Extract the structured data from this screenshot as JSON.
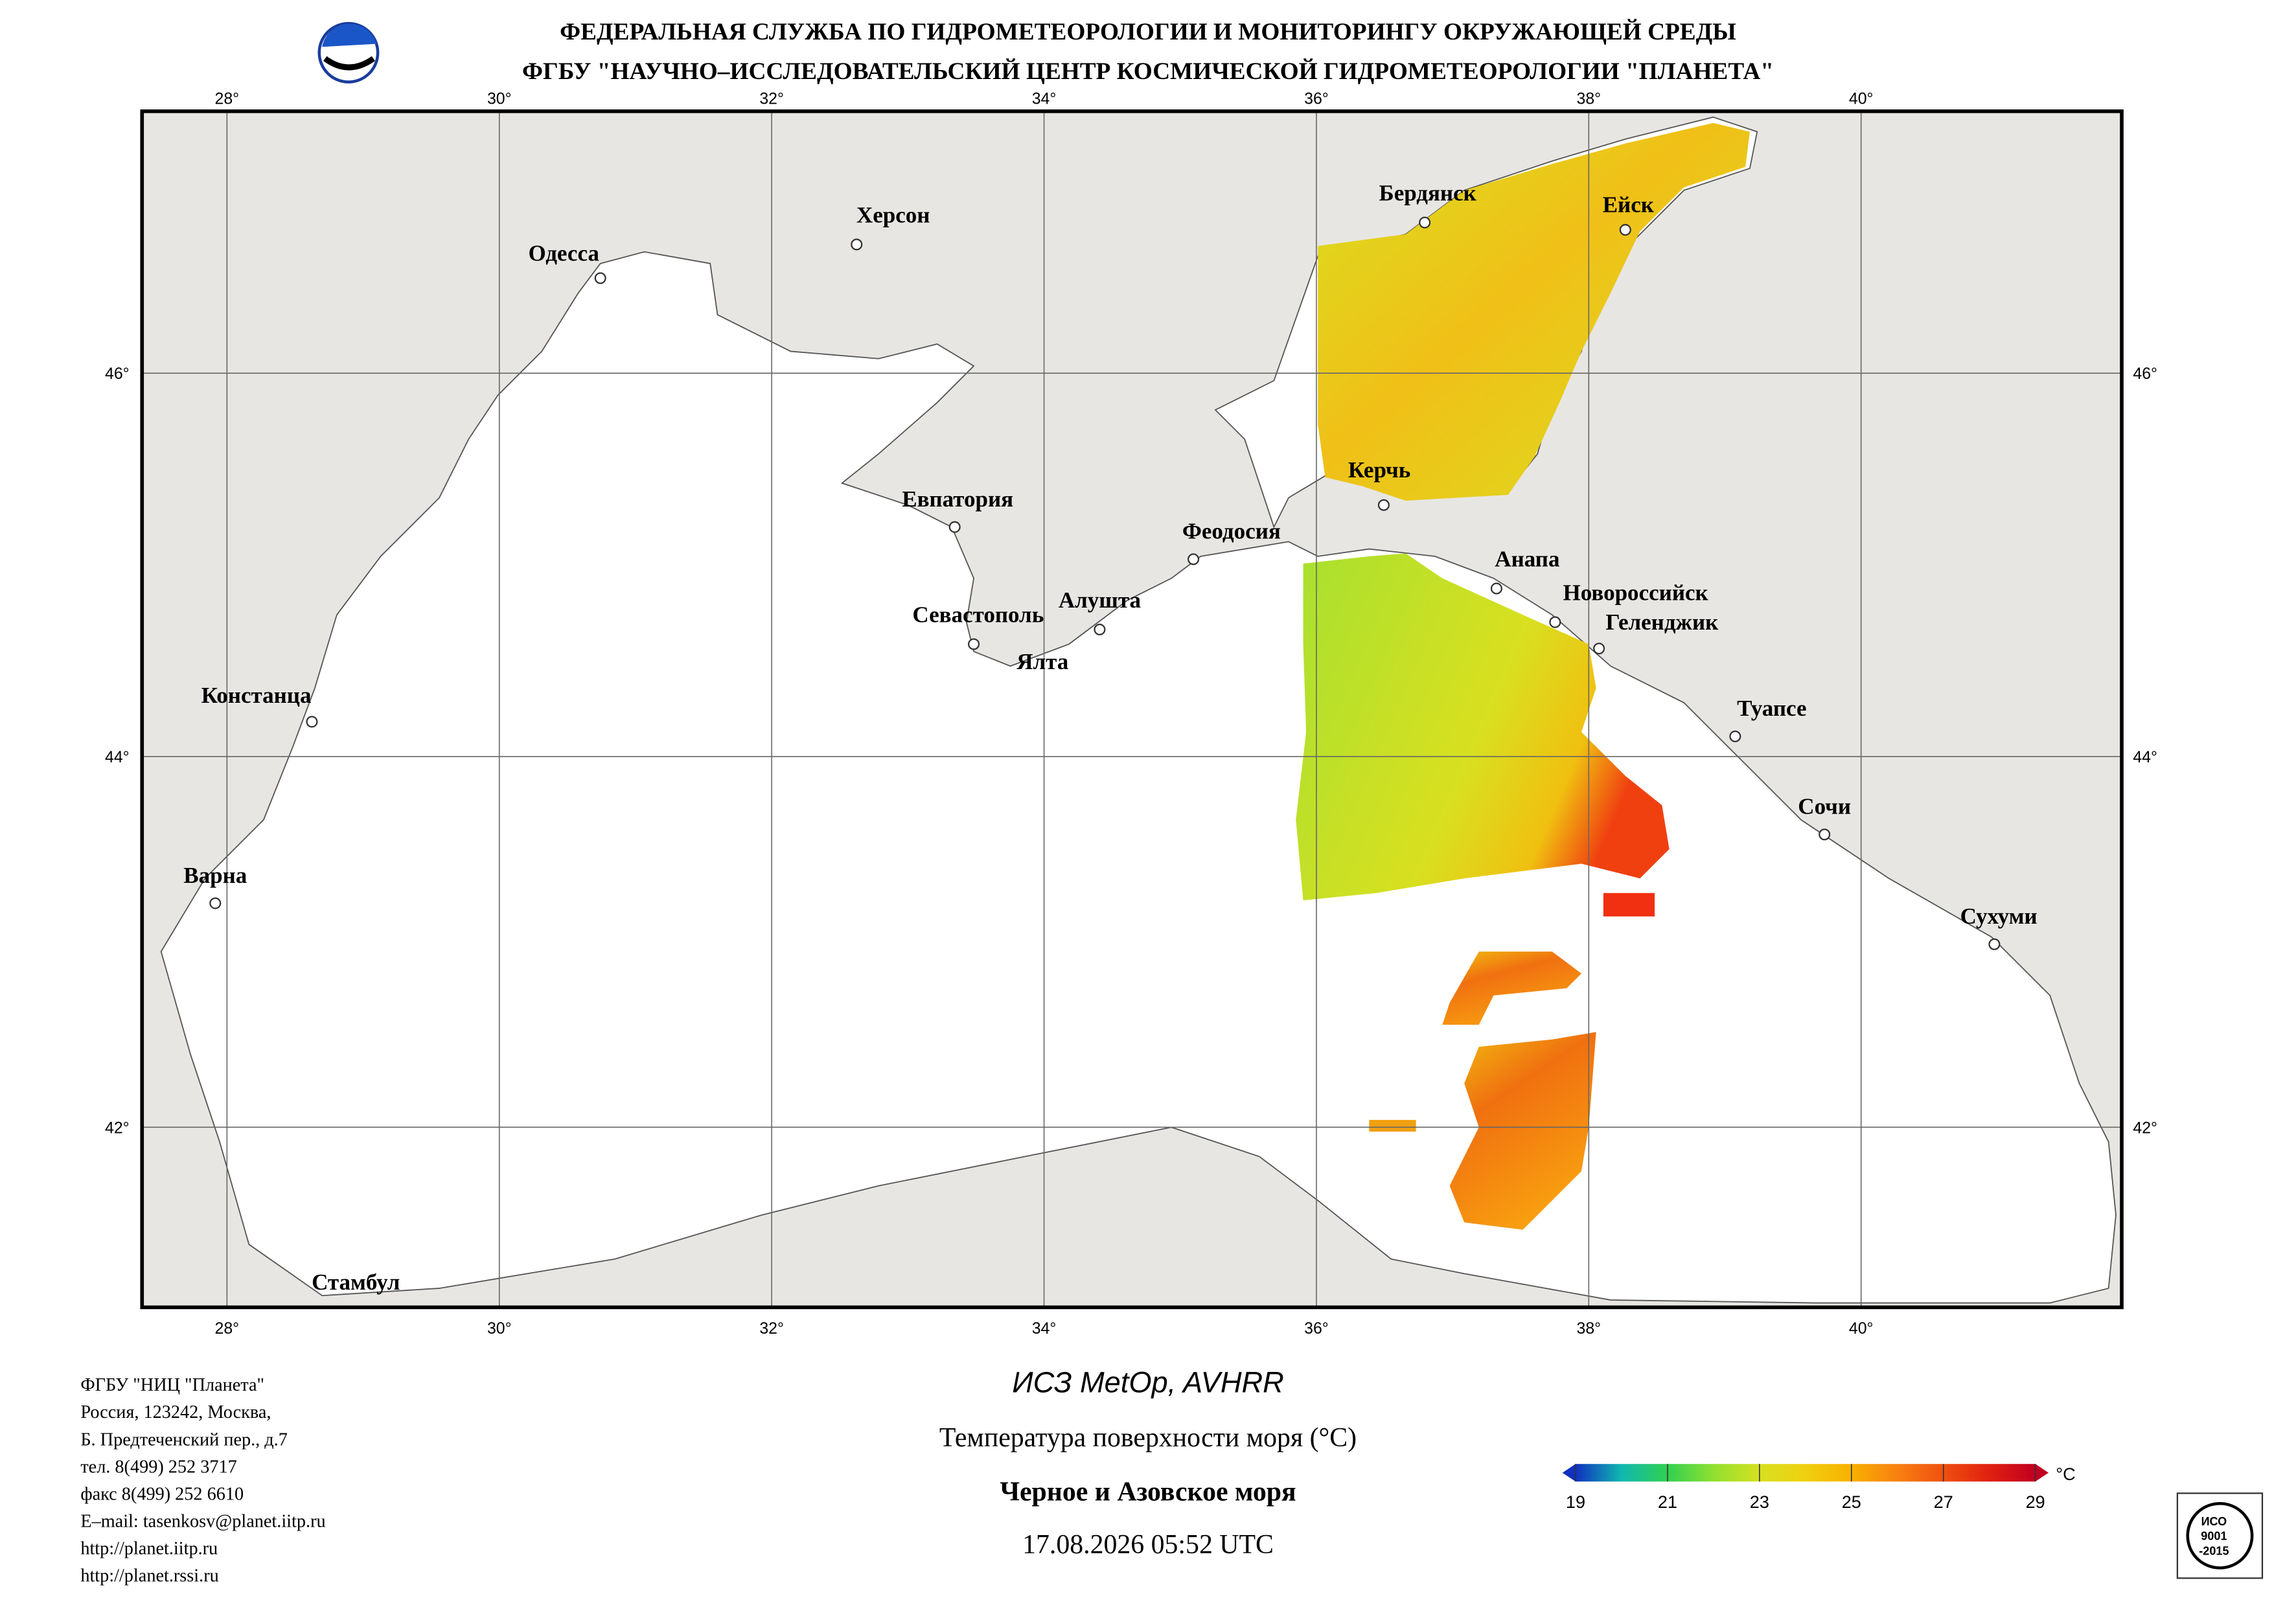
{
  "header": {
    "title": "ФЕДЕРАЛЬНАЯ СЛУЖБА ПО ГИДРОМЕТЕОРОЛОГИИ И МОНИТОРИНГУ ОКРУЖАЮЩЕЙ СРЕДЫ",
    "subtitle": "ФГБУ \"НАУЧНО–ИССЛЕДОВАТЕЛЬСКИЙ ЦЕНТР КОСМИЧЕСКОЙ ГИДРОМЕТЕОРОЛОГИИ \"ПЛАНЕТА\""
  },
  "map": {
    "lon_ticks": [
      {
        "value": 28,
        "label": "28°"
      },
      {
        "value": 30,
        "label": "30°"
      },
      {
        "value": 32,
        "label": "32°"
      },
      {
        "value": 34,
        "label": "34°"
      },
      {
        "value": 36,
        "label": "36°"
      },
      {
        "value": 38,
        "label": "38°"
      },
      {
        "value": 40,
        "label": "40°"
      }
    ],
    "lat_ticks": [
      {
        "value": 46,
        "label": "46°"
      },
      {
        "value": 44,
        "label": "44°"
      },
      {
        "value": 42,
        "label": "42°"
      }
    ],
    "cities": [
      "Бердянск",
      "Ейск",
      "Херсон",
      "Одесса",
      "Керчь",
      "Евпатория",
      "Феодосия",
      "Анапа",
      "Новороссийск",
      "Геленджик",
      "Алушта",
      "Севастополь",
      "Ялта",
      "Констанца",
      "Туапсе",
      "Сочи",
      "Варна",
      "Сухуми",
      "Стамбул"
    ]
  },
  "footer": {
    "address": [
      "ФГБУ \"НИЦ \"Планета\"",
      "Россия, 123242, Москва,",
      "Б. Предтеченский пер., д.7",
      "тел. 8(499) 252 3717",
      "факс 8(499) 252 6610",
      "E–mail: tasenkosv@planet.iitp.ru",
      "http://planet.iitp.ru",
      "http://planet.rssi.ru"
    ],
    "satellite": "ИСЗ MetOp, AVHRR",
    "product": "Температура поверхности моря (°C)",
    "region": "Черное и Азовское моря",
    "datetime": "17.08.2026 05:52 UTC",
    "colorbar": {
      "lim": [
        19,
        29
      ],
      "ticks": [
        19,
        21,
        23,
        25,
        27,
        29
      ],
      "unit": "°C",
      "colors": [
        "#1030c0",
        "#10b8b0",
        "#30d050",
        "#90e030",
        "#d8e020",
        "#f0d010",
        "#f8b000",
        "#f88010",
        "#f05010",
        "#e02010",
        "#c00020"
      ]
    },
    "certificate": [
      "ИСО",
      "9001",
      "-2015"
    ]
  }
}
